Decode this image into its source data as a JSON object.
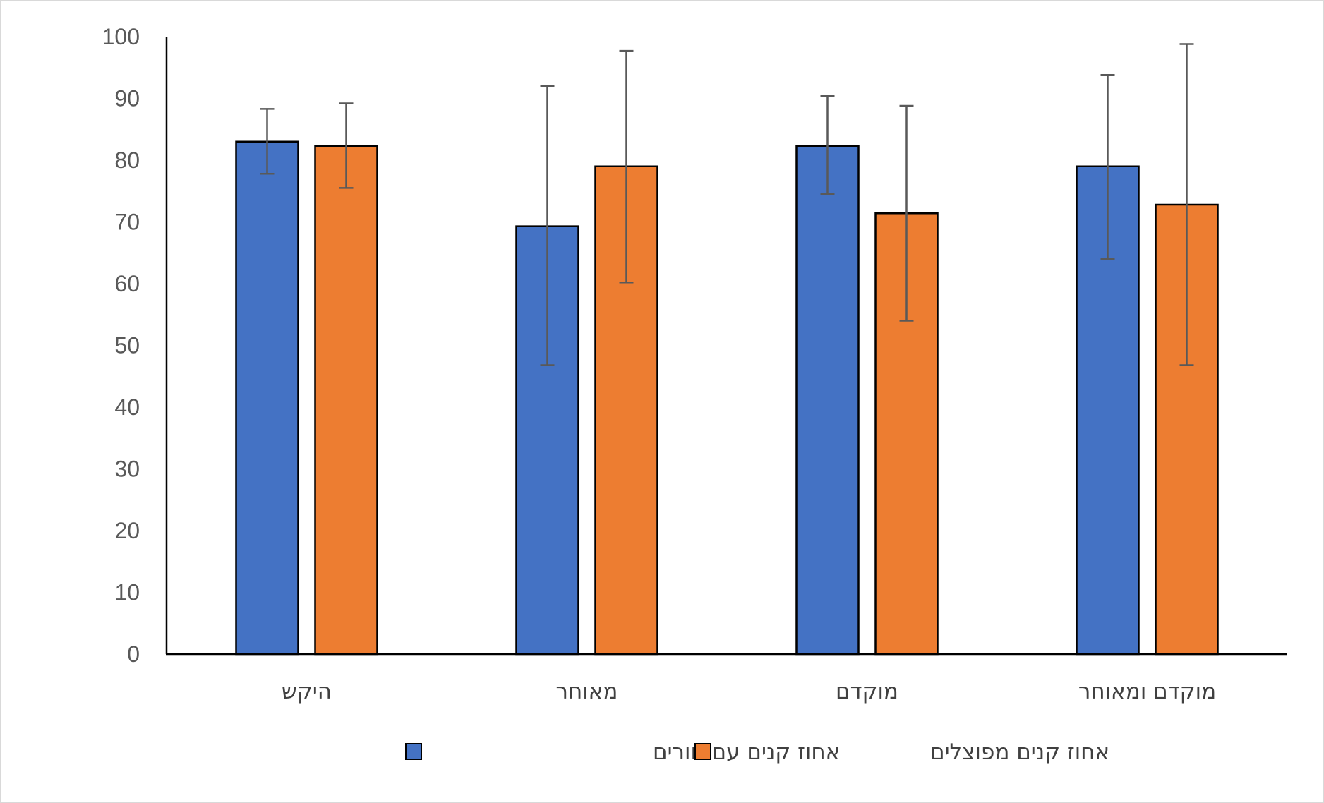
{
  "chart_data": {
    "type": "bar",
    "categories": [
      "היקש",
      "מאוחר",
      "מוקדם",
      "מוקדם ומאוחר"
    ],
    "series": [
      {
        "name": "אחוז קנים עם חורים",
        "color": "#4472c4",
        "values": [
          83,
          69.3,
          82.3,
          79
        ],
        "error_low": [
          77.8,
          46.8,
          74.5,
          64
        ],
        "error_high": [
          88.3,
          92,
          90.4,
          93.8
        ]
      },
      {
        "name": "אחוז קנים מפוצלים",
        "color": "#ed7d31",
        "values": [
          82.3,
          79,
          71.4,
          72.8
        ],
        "error_low": [
          75.5,
          60.2,
          54,
          46.8
        ],
        "error_high": [
          89.2,
          97.7,
          88.8,
          98.8
        ]
      }
    ],
    "y_ticks": [
      "0",
      "10",
      "20",
      "30",
      "40",
      "50",
      "60",
      "70",
      "80",
      "90",
      "100"
    ],
    "ylim": [
      0,
      100
    ],
    "grid": false,
    "legend_position": "bottom",
    "title": "",
    "xlabel": "",
    "ylabel": ""
  }
}
